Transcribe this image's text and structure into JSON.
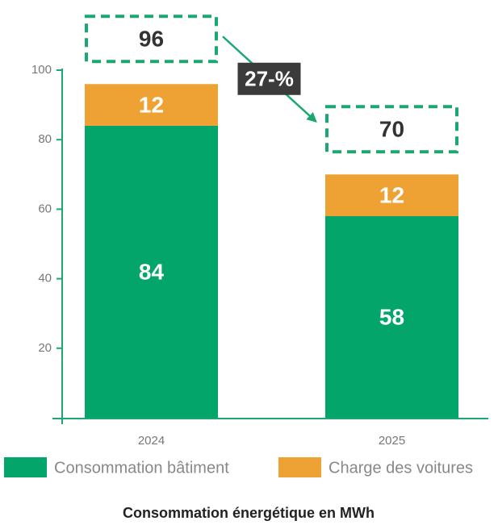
{
  "chart_data": {
    "type": "stacked_bar",
    "title": "Consommation énergétique en MWh",
    "categories": [
      "2024",
      "2025"
    ],
    "series": [
      {
        "name": "Consommation bâtiment",
        "color": "#03a56a",
        "values": [
          84,
          58
        ]
      },
      {
        "name": "Charge des voitures",
        "color": "#efa234",
        "values": [
          12,
          12
        ]
      }
    ],
    "totals": [
      96,
      70
    ],
    "change_label": "27-%",
    "ylim": [
      0,
      100
    ],
    "yticks": [
      20,
      40,
      60,
      80,
      100
    ]
  }
}
